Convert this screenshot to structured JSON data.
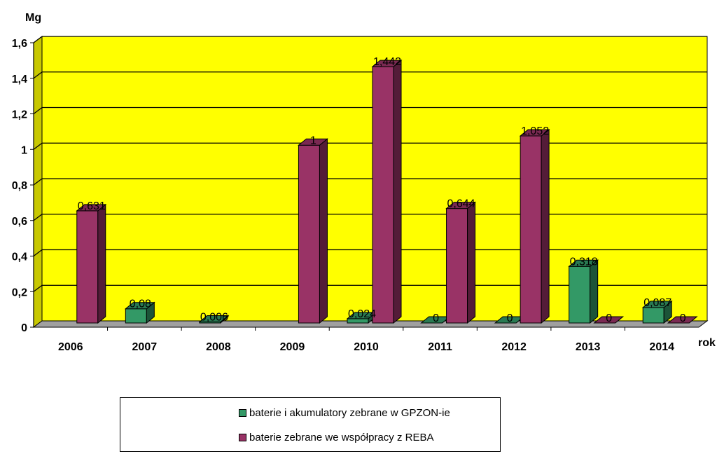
{
  "chart_data": {
    "type": "bar",
    "ylabel": "Mg",
    "xlabel": "rok",
    "ylim": [
      0,
      1.6
    ],
    "yticks": [
      "0",
      "0,2",
      "0,4",
      "0,6",
      "0,8",
      "1",
      "1,2",
      "1,4",
      "1,6"
    ],
    "grid": true,
    "legend_position": "bottom",
    "plot_background": "#ffff00",
    "categories": [
      "2006",
      "2007",
      "2008",
      "2009",
      "2010",
      "2011",
      "2012",
      "2013",
      "2014"
    ],
    "series": [
      {
        "name": "baterie i akumulatory zebrane w GPZON-ie",
        "color": "#339966",
        "values": [
          null,
          0.08,
          0.006,
          null,
          0.024,
          0,
          0,
          0.318,
          0.087
        ],
        "labels": [
          "",
          "0,08",
          "0,006",
          "",
          "0,024",
          "0",
          "0",
          "0,318",
          "0,087"
        ]
      },
      {
        "name": "baterie zebrane we współpracy z REBA",
        "color": "#993366",
        "values": [
          0.631,
          null,
          null,
          1,
          1.442,
          0.644,
          1.052,
          0,
          0
        ],
        "labels": [
          "0,631",
          "",
          "",
          "1",
          "1,442",
          "0,644",
          "1,052",
          "0",
          "0"
        ]
      }
    ]
  }
}
